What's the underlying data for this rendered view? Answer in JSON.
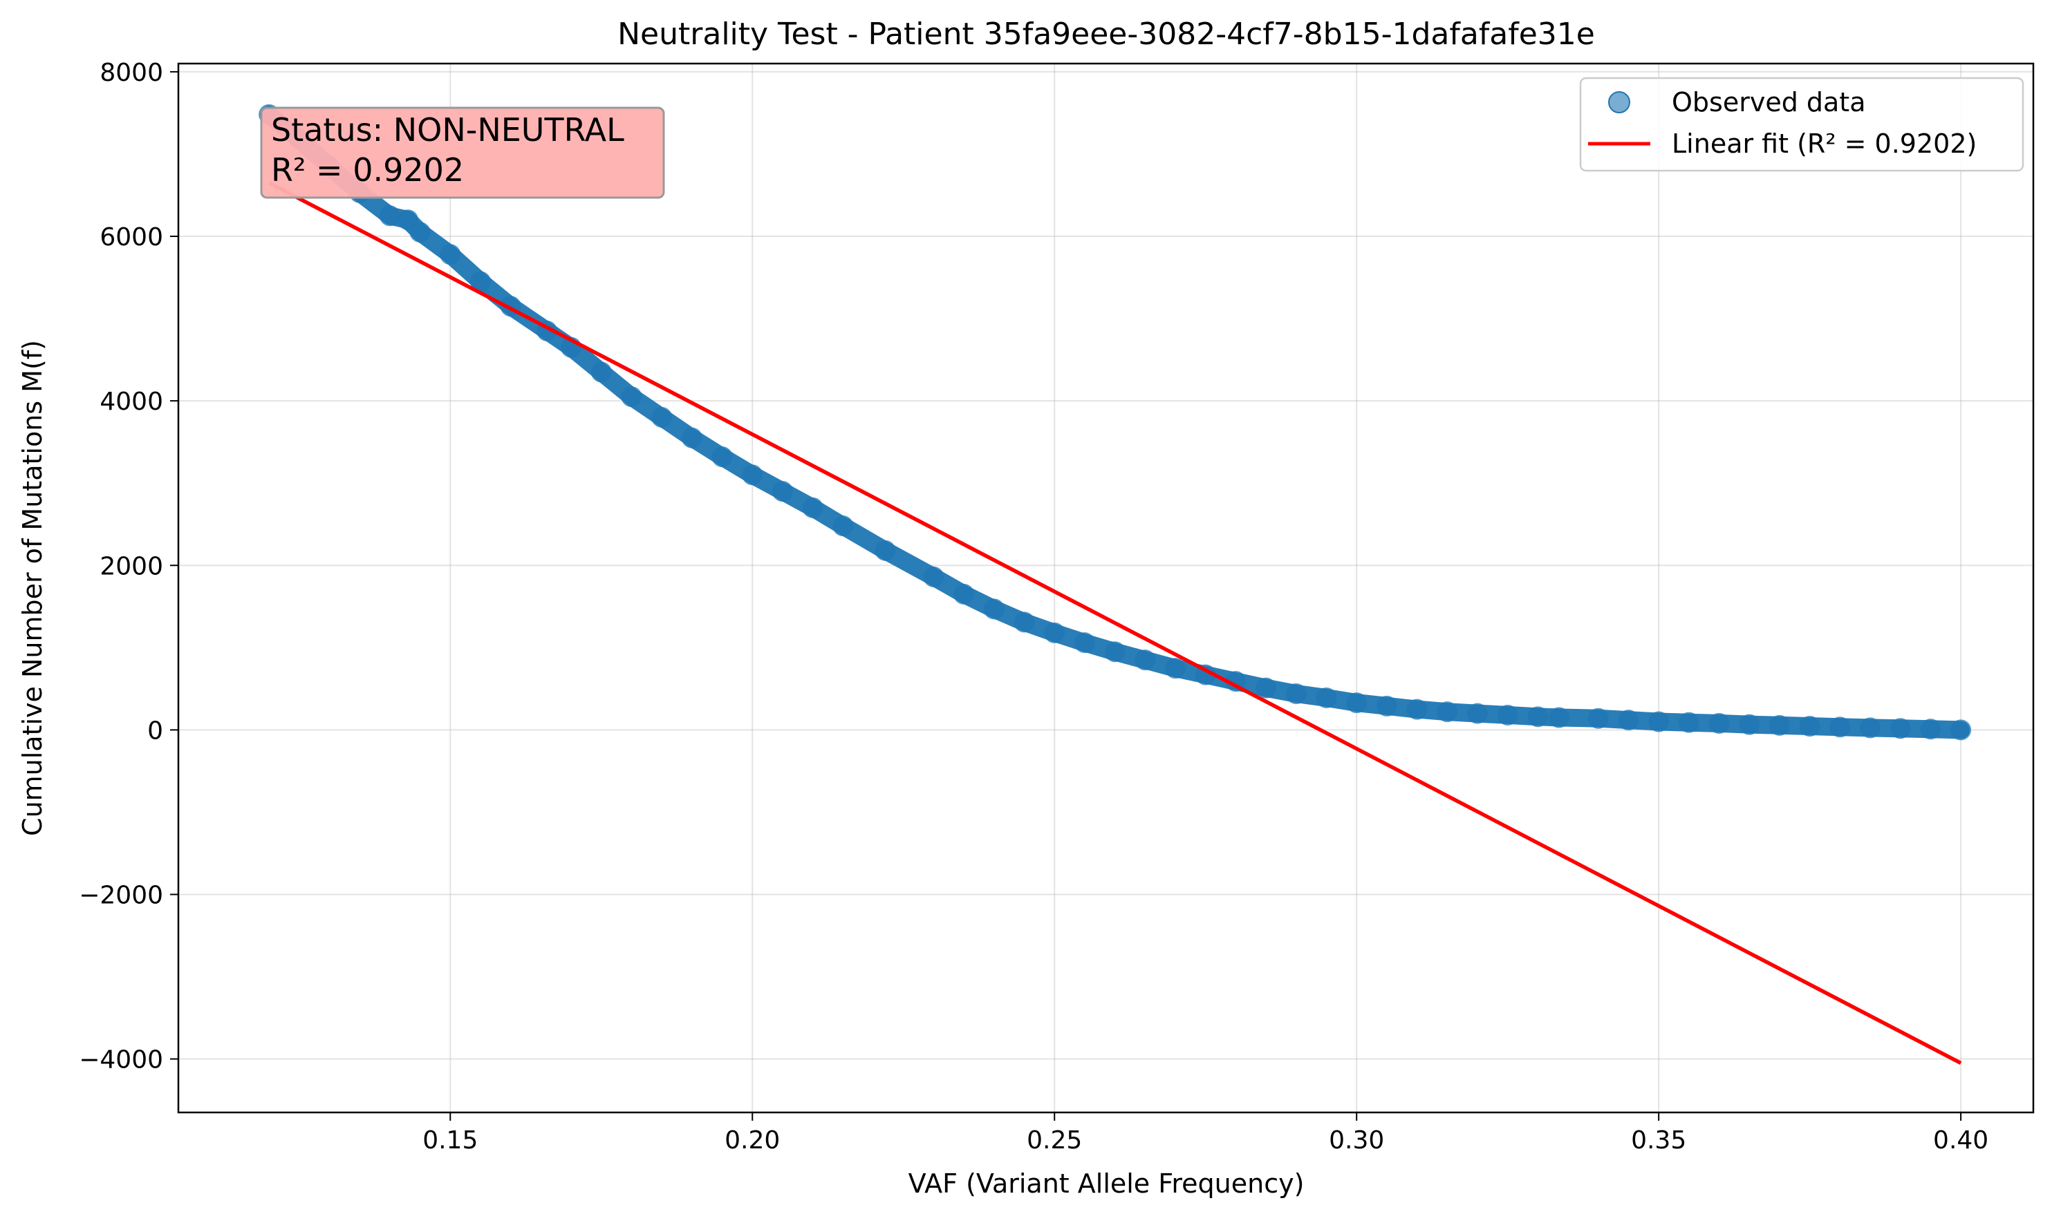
{
  "chart_data": {
    "type": "scatter",
    "title": "Neutrality Test - Patient 35fa9eee-3082-4cf7-8b15-1dafafafe31e",
    "xlabel": "VAF (Variant Allele Frequency)",
    "ylabel": "Cumulative Number of Mutations M(f)",
    "xlim": [
      0.105,
      0.412
    ],
    "ylim": [
      -4650,
      8100
    ],
    "xticks": [
      0.15,
      0.2,
      0.25,
      0.3,
      0.35,
      0.4
    ],
    "xtick_labels": [
      "0.15",
      "0.20",
      "0.25",
      "0.30",
      "0.35",
      "0.40"
    ],
    "yticks": [
      8000,
      6000,
      4000,
      2000,
      0,
      -2000,
      -4000
    ],
    "ytick_labels": [
      "8000",
      "6000",
      "4000",
      "2000",
      "0",
      "−2000",
      "−4000"
    ],
    "grid": true,
    "legend_position": "top-right",
    "series": [
      {
        "name": "Observed data",
        "kind": "scatter",
        "color": "#1f77b4",
        "x": [
          0.12,
          0.125,
          0.13,
          0.135,
          0.14,
          0.143,
          0.145,
          0.15,
          0.155,
          0.16,
          0.166,
          0.17,
          0.175,
          0.18,
          0.185,
          0.19,
          0.195,
          0.2,
          0.205,
          0.21,
          0.215,
          0.222,
          0.23,
          0.235,
          0.24,
          0.245,
          0.25,
          0.255,
          0.26,
          0.265,
          0.27,
          0.275,
          0.28,
          0.285,
          0.29,
          0.295,
          0.3,
          0.305,
          0.31,
          0.315,
          0.32,
          0.325,
          0.33,
          0.3335,
          0.34,
          0.345,
          0.35,
          0.355,
          0.36,
          0.365,
          0.37,
          0.375,
          0.38,
          0.385,
          0.39,
          0.395,
          0.4
        ],
        "y": [
          7480,
          7180,
          6850,
          6530,
          6250,
          6200,
          6050,
          5780,
          5450,
          5150,
          4850,
          4650,
          4350,
          4050,
          3800,
          3550,
          3320,
          3100,
          2900,
          2700,
          2480,
          2180,
          1860,
          1650,
          1470,
          1310,
          1180,
          1060,
          950,
          850,
          750,
          670,
          590,
          510,
          440,
          390,
          330,
          290,
          250,
          220,
          200,
          180,
          160,
          150,
          140,
          120,
          100,
          90,
          80,
          65,
          55,
          45,
          35,
          25,
          18,
          10,
          0
        ]
      },
      {
        "name": "Linear fit (R² = 0.9202)",
        "kind": "line",
        "color": "#ff0000",
        "x": [
          0.12,
          0.4
        ],
        "y": [
          6650,
          -4050
        ]
      }
    ],
    "annotation": {
      "lines": [
        "Status: NON-NEUTRAL",
        "R² = 0.9202"
      ],
      "background": "#ffb0b0",
      "border": "#999999"
    }
  }
}
